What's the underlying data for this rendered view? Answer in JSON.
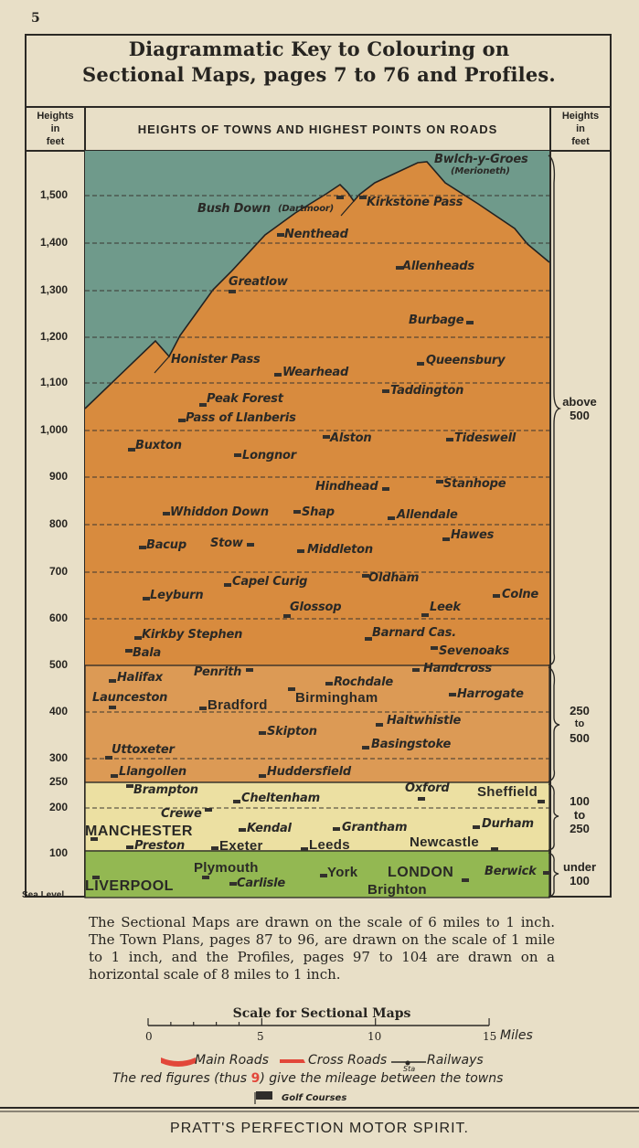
{
  "page_number": "5",
  "title_line1": "Diagrammatic Key to Colouring on",
  "title_line2": "Sectional Maps, pages 7 to 76 and Profiles.",
  "left_header": [
    "Heights",
    "in",
    "feet"
  ],
  "right_header": [
    "Heights",
    "in",
    "feet"
  ],
  "main_header": "HEIGHTS OF TOWNS AND HIGHEST POINTS ON ROADS",
  "y_axis_labels": [
    "1,500",
    "1,400",
    "1,300",
    "1,200",
    "1,100",
    "1,000",
    "900",
    "800",
    "700",
    "600",
    "500",
    "400",
    "300",
    "250",
    "200",
    "100",
    "Sea Level"
  ],
  "band_labels": [
    {
      "line1": "above",
      "line2": "500"
    },
    {
      "line1": "250",
      "line2": "to",
      "line3": "500"
    },
    {
      "line1": "100",
      "line2": "to",
      "line3": "250"
    },
    {
      "line1": "under",
      "line2": "100"
    }
  ],
  "colors": {
    "sky": "#6f9a8b",
    "above_500": "#d88b3e",
    "250_500": "#dc9a55",
    "100_250": "#ece0a2",
    "under_100": "#93b852",
    "road_red": "#e2473a"
  },
  "towns": [
    "Bwlch-y-Groes",
    "(Merioneth)",
    "Bush Down",
    "(Dartmoor)",
    "Kirkstone Pass",
    "Nenthead",
    "Allenheads",
    "Greatlow",
    "Burbage",
    "Honister Pass",
    "Wearhead",
    "Queensbury",
    "Taddington",
    "Peak Forest",
    "Pass of Llanberis",
    "Alston",
    "Tideswell",
    "Buxton",
    "Longnor",
    "Hindhead",
    "Stanhope",
    "Whiddon Down",
    "Shap",
    "Allendale",
    "Hawes",
    "Bacup",
    "Stow",
    "Middleton",
    "Oldham",
    "Capel Curig",
    "Leyburn",
    "Colne",
    "Glossop",
    "Leek",
    "Kirkby Stephen",
    "Barnard Cas.",
    "Bala",
    "Sevenoaks",
    "Halifax",
    "Penrith",
    "Handcross",
    "Rochdale",
    "Launceston",
    "Bradford",
    "Birmingham",
    "Harrogate",
    "Haltwhistle",
    "Skipton",
    "Basingstoke",
    "Uttoxeter",
    "Llangollen",
    "Huddersfield",
    "Brampton",
    "Cheltenham",
    "Oxford",
    "Sheffield",
    "Crewe",
    "MANCHESTER",
    "Kendal",
    "Grantham",
    "Durham",
    "Preston",
    "Exeter",
    "Leeds",
    "Newcastle",
    "Plymouth",
    "LIVERPOOL",
    "Carlisle",
    "York",
    "LONDON",
    "Brighton",
    "Berwick"
  ],
  "paragraph": "The Sectional Maps are drawn on the scale of 6 miles to 1 inch. The Town Plans, pages 87 to 96, are drawn on the scale of 1 mile to 1 inch, and the Profiles, pages 97 to 104 are drawn on a horizontal scale of 8 miles to 1 inch.",
  "scale": {
    "title": "Scale for Sectional Maps",
    "ticks": [
      "0",
      "5",
      "10",
      "15"
    ],
    "unit": "Miles"
  },
  "legend": {
    "main_roads": "Main Roads",
    "cross_roads": "Cross Roads",
    "railways": "Railways",
    "railway_station_abbr": "Sta",
    "red_figures_before": "The red figures (thus ",
    "red_figures_example": "9",
    "red_figures_after": ") give the mileage between the towns",
    "golf": "Golf Courses"
  },
  "footer": "PRATT'S PERFECTION MOTOR SPIRIT."
}
